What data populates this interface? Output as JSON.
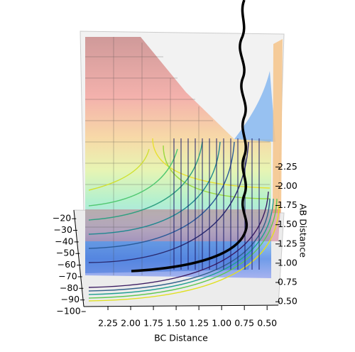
{
  "chart_data": {
    "type": "surface3d",
    "xlabel": "BC Distance",
    "ylabel": "AB Distance",
    "xlim": [
      2.5,
      0.4
    ],
    "xticks": [
      2.25,
      {
        "value": 2,
        "label": "2.00"
      },
      1.75,
      {
        "value": 1.5,
        "label": "1.50"
      },
      1.25,
      {
        "value": 1,
        "label": "1.00"
      },
      0.75,
      {
        "value": 0.5,
        "label": "0.50"
      }
    ],
    "ylim": [
      0.4,
      2.4
    ],
    "yticks": [
      {
        "value": 0.5,
        "label": "0.50"
      },
      0.75,
      {
        "value": 1,
        "label": "1.00"
      },
      1.25,
      {
        "value": 1.5,
        "label": "1.50"
      },
      1.75,
      {
        "value": 2,
        "label": "2.00"
      },
      2.25
    ],
    "zlim": [
      -100,
      -15
    ],
    "zticks": [
      {
        "value": -20,
        "label": "−20"
      },
      {
        "value": -30,
        "label": "−30"
      },
      {
        "value": -40,
        "label": "−40"
      },
      {
        "value": -50,
        "label": "−50"
      },
      {
        "value": -60,
        "label": "−60"
      },
      {
        "value": -70,
        "label": "−70"
      },
      {
        "value": -80,
        "label": "−80"
      },
      {
        "value": -90,
        "label": "−90"
      },
      {
        "value": -100,
        "label": "−100"
      }
    ]
  }
}
